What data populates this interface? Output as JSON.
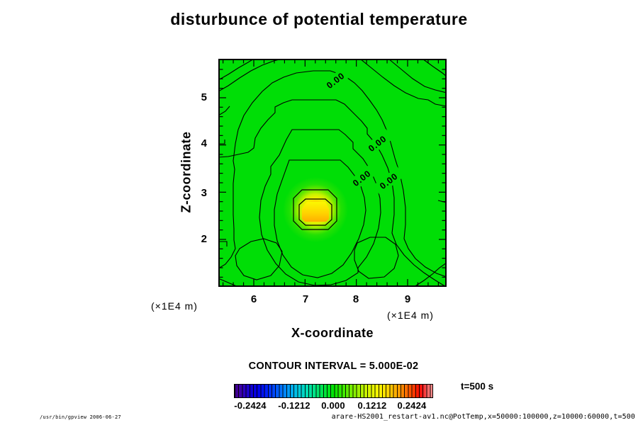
{
  "title": "disturbunce of potential temperature",
  "plot": {
    "x_axis": {
      "label": "X-coordinate",
      "tick_labels": [
        "6",
        "7",
        "8",
        "9"
      ],
      "unit": "(×1E4 m)"
    },
    "z_axis": {
      "label": "Z-coordinate",
      "tick_labels": [
        "5",
        "4",
        "3",
        "2"
      ],
      "unit": "(×1E4 m)"
    },
    "contour_labels": [
      "0.00",
      "0.00",
      "0.00",
      "0.00"
    ]
  },
  "legend": {
    "contour_interval_text": "CONTOUR INTERVAL = 5.000E-02",
    "tick_labels": [
      "-0.2424",
      "-0.1212",
      "0.000",
      "0.1212",
      "0.2424"
    ],
    "time_label": "t=500 s"
  },
  "footer": {
    "left": "/usr/bin/gpview 2006-06-27",
    "right": "arare-HS2001_restart-av1.nc@PotTemp,x=50000:100000,z=10000:60000,t=500"
  },
  "colors": {
    "plot_green": "#00DE06",
    "contour_line": "#000000",
    "hotspot_core": "#FFB000",
    "hotspot_glow": "#F6EE00",
    "colorbar_left": "#3A0080",
    "colorbar_right": "#F89090"
  },
  "chart_data": {
    "type": "heatmap",
    "title": "disturbunce of potential temperature",
    "xlabel": "X-coordinate",
    "ylabel": "Z-coordinate",
    "x_unit": "×1E4 m",
    "z_unit": "×1E4 m",
    "x_ticks": [
      6,
      7,
      8,
      9
    ],
    "z_ticks": [
      2,
      3,
      4,
      5
    ],
    "x_range_m": [
      50000,
      100000
    ],
    "z_range_m": [
      10000,
      60000
    ],
    "time_s": 500,
    "contour_interval": 0.05,
    "zero_contour_label": "0.00",
    "colorbar_ticks": [
      -0.2424,
      -0.1212,
      0.0,
      0.1212,
      0.2424
    ],
    "field": "Potential temperature disturbance is ~0 (uniform green) over most of the domain, with many labeled 0.00 zero-contours; a single localized warm anomaly (yellow-orange core ringed by two closed contours) rises to ~+0.25.",
    "peak": {
      "x_1e4_m": 7.2,
      "z_1e4_m": 2.7,
      "value_max": 0.25
    }
  }
}
